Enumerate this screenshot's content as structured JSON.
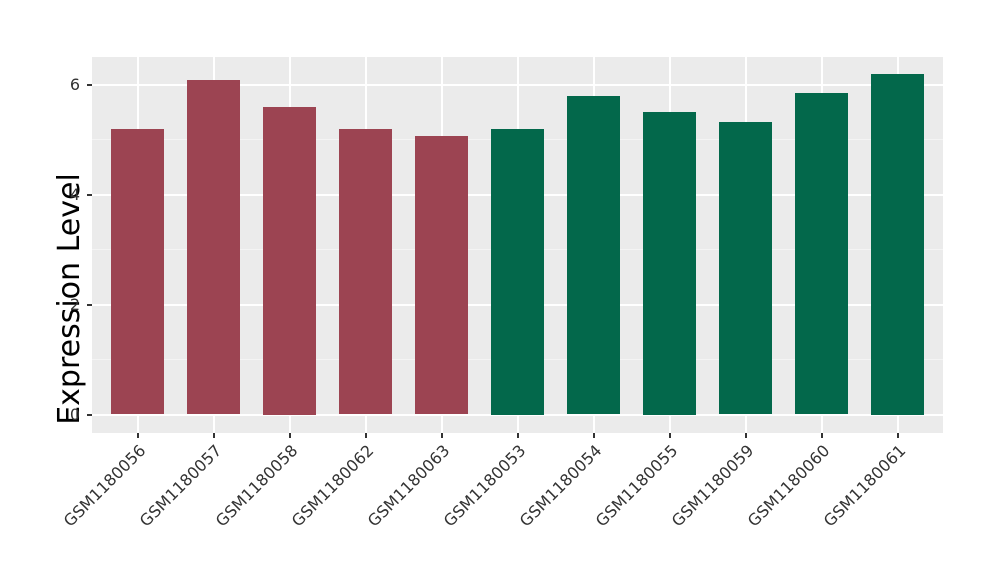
{
  "chart": {
    "background": "#FFFFFF",
    "panel_background": "#EBEBEB",
    "grid_major_color": "#FFFFFF",
    "grid_minor_color": "#F4F4F4",
    "tick_mark_color": "#333333",
    "tick_text_color": "#333333",
    "axis_title_color": "#000000"
  },
  "chart_data": {
    "type": "bar",
    "title": "",
    "xlabel": "",
    "ylabel": "Expression Level",
    "bar_orientation": "vertical",
    "x_label_rotation_deg": 45,
    "grid": true,
    "legend": false,
    "categories": [
      "GSM1180056",
      "GSM1180057",
      "GSM1180058",
      "GSM1180062",
      "GSM1180063",
      "GSM1180053",
      "GSM1180054",
      "GSM1180055",
      "GSM1180059",
      "GSM1180060",
      "GSM1180061"
    ],
    "values": [
      5.19,
      6.08,
      5.6,
      5.19,
      5.06,
      5.2,
      5.79,
      5.5,
      5.31,
      5.84,
      6.2
    ],
    "bar_colors": [
      "#9C4452",
      "#9C4452",
      "#9C4452",
      "#9C4452",
      "#9C4452",
      "#03684B",
      "#03684B",
      "#03684B",
      "#03684B",
      "#03684B",
      "#03684B"
    ],
    "yticks": [
      0,
      2,
      4,
      6
    ],
    "yticks_minor": [
      1,
      3,
      5
    ],
    "ylim": [
      -0.33,
      6.51
    ]
  }
}
